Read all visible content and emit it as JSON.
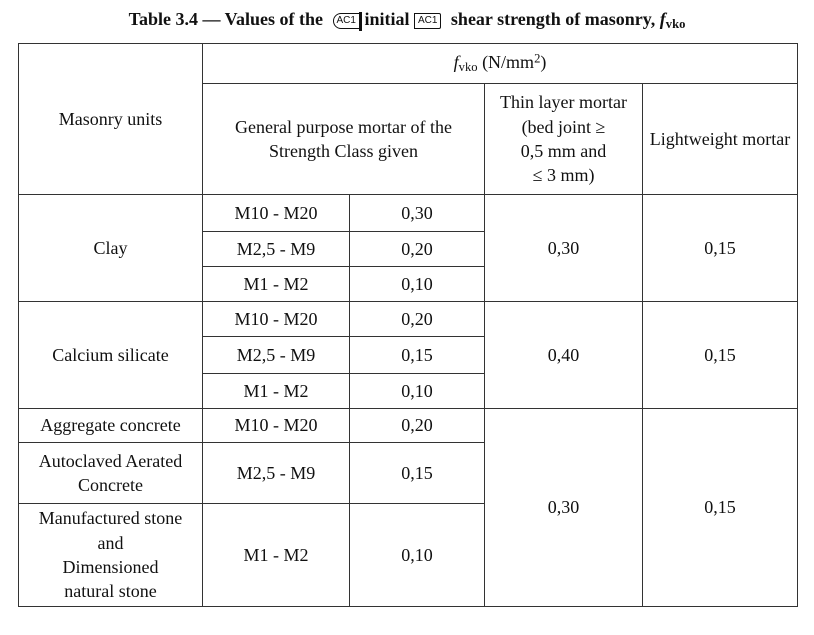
{
  "caption": {
    "prefix": "Table 3.4 — Values of the",
    "ac_open": "AC1",
    "middle": "initial",
    "ac_close": "AC1",
    "suffix": "shear strength of masonry,",
    "symbol": "f",
    "symbol_sub": "vko"
  },
  "header": {
    "units_label": "Masonry units",
    "fvko_symbol": "f",
    "fvko_sub": "vko",
    "fvko_unit_pre": "(N/mm",
    "fvko_unit_sup": "2",
    "fvko_unit_post": ")",
    "general_mortar": "General purpose mortar of the Strength Class given",
    "thin_layer_line1": "Thin layer mortar",
    "thin_layer_line2": "(bed joint ≥",
    "thin_layer_line3": "0,5 mm and",
    "thin_layer_line4": "≤ 3 mm)",
    "lightweight": "Lightweight mortar"
  },
  "groups": [
    {
      "unit": "Clay",
      "rows": [
        {
          "strength_class": "M10 - M20",
          "value": "0,30"
        },
        {
          "strength_class": "M2,5 - M9",
          "value": "0,20"
        },
        {
          "strength_class": "M1 - M2",
          "value": "0,10"
        }
      ],
      "thin_layer": "0,30",
      "lightweight": "0,15"
    },
    {
      "unit": "Calcium silicate",
      "rows": [
        {
          "strength_class": "M10 - M20",
          "value": "0,20"
        },
        {
          "strength_class": "M2,5 - M9",
          "value": "0,15"
        },
        {
          "strength_class": "M1 - M2",
          "value": "0,10"
        }
      ],
      "thin_layer": "0,40",
      "lightweight": "0,15"
    },
    {
      "units": [
        {
          "unit_lines": [
            "Aggregate concrete"
          ],
          "strength_class": "M10 - M20",
          "value": "0,20"
        },
        {
          "unit_lines": [
            "Autoclaved Aerated",
            "Concrete"
          ],
          "strength_class": "M2,5 - M9",
          "value": "0,15"
        },
        {
          "unit_lines": [
            "Manufactured stone",
            "and",
            "Dimensioned",
            "natural stone"
          ],
          "strength_class": "M1 - M2",
          "value": "0,10"
        }
      ],
      "thin_layer": "0,30",
      "lightweight": "0,15"
    }
  ]
}
